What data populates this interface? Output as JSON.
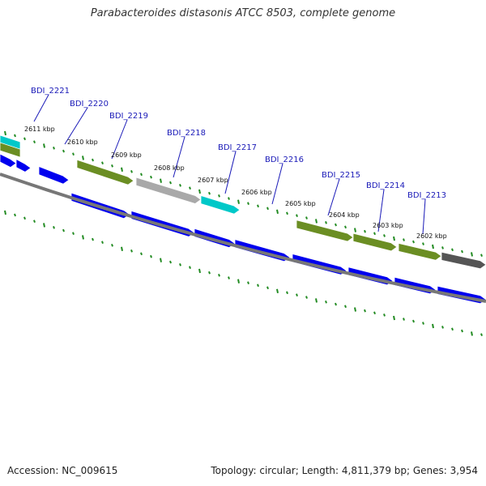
{
  "title": "Parabacteroides distasonis ATCC 8503, complete genome",
  "footer": {
    "accession": "Accession: NC_009615",
    "summary": "Topology: circular; Length: 4,811,379 bp; Genes: 3,954"
  },
  "colors": {
    "cds_forward": "#0000ee",
    "cds_olive": "#6b8e23",
    "cds_gray": "#a9a9a9",
    "cds_cyan": "#00c8c8",
    "cds_dark": "#555555",
    "backbone": "#707070",
    "ruler": "#228b22",
    "label": "#1a1ab8"
  },
  "gene_labels": [
    "BDI_2221",
    "BDI_2220",
    "BDI_2219",
    "BDI_2218",
    "BDI_2217",
    "BDI_2216",
    "BDI_2215",
    "BDI_2214",
    "BDI_2213"
  ],
  "ruler_labels": [
    "2611 kbp",
    "2610 kbp",
    "2609 kbp",
    "2608 kbp",
    "2607 kbp",
    "2606 kbp",
    "2605 kbp",
    "2604 kbp",
    "2603 kbp",
    "2602 kbp"
  ]
}
